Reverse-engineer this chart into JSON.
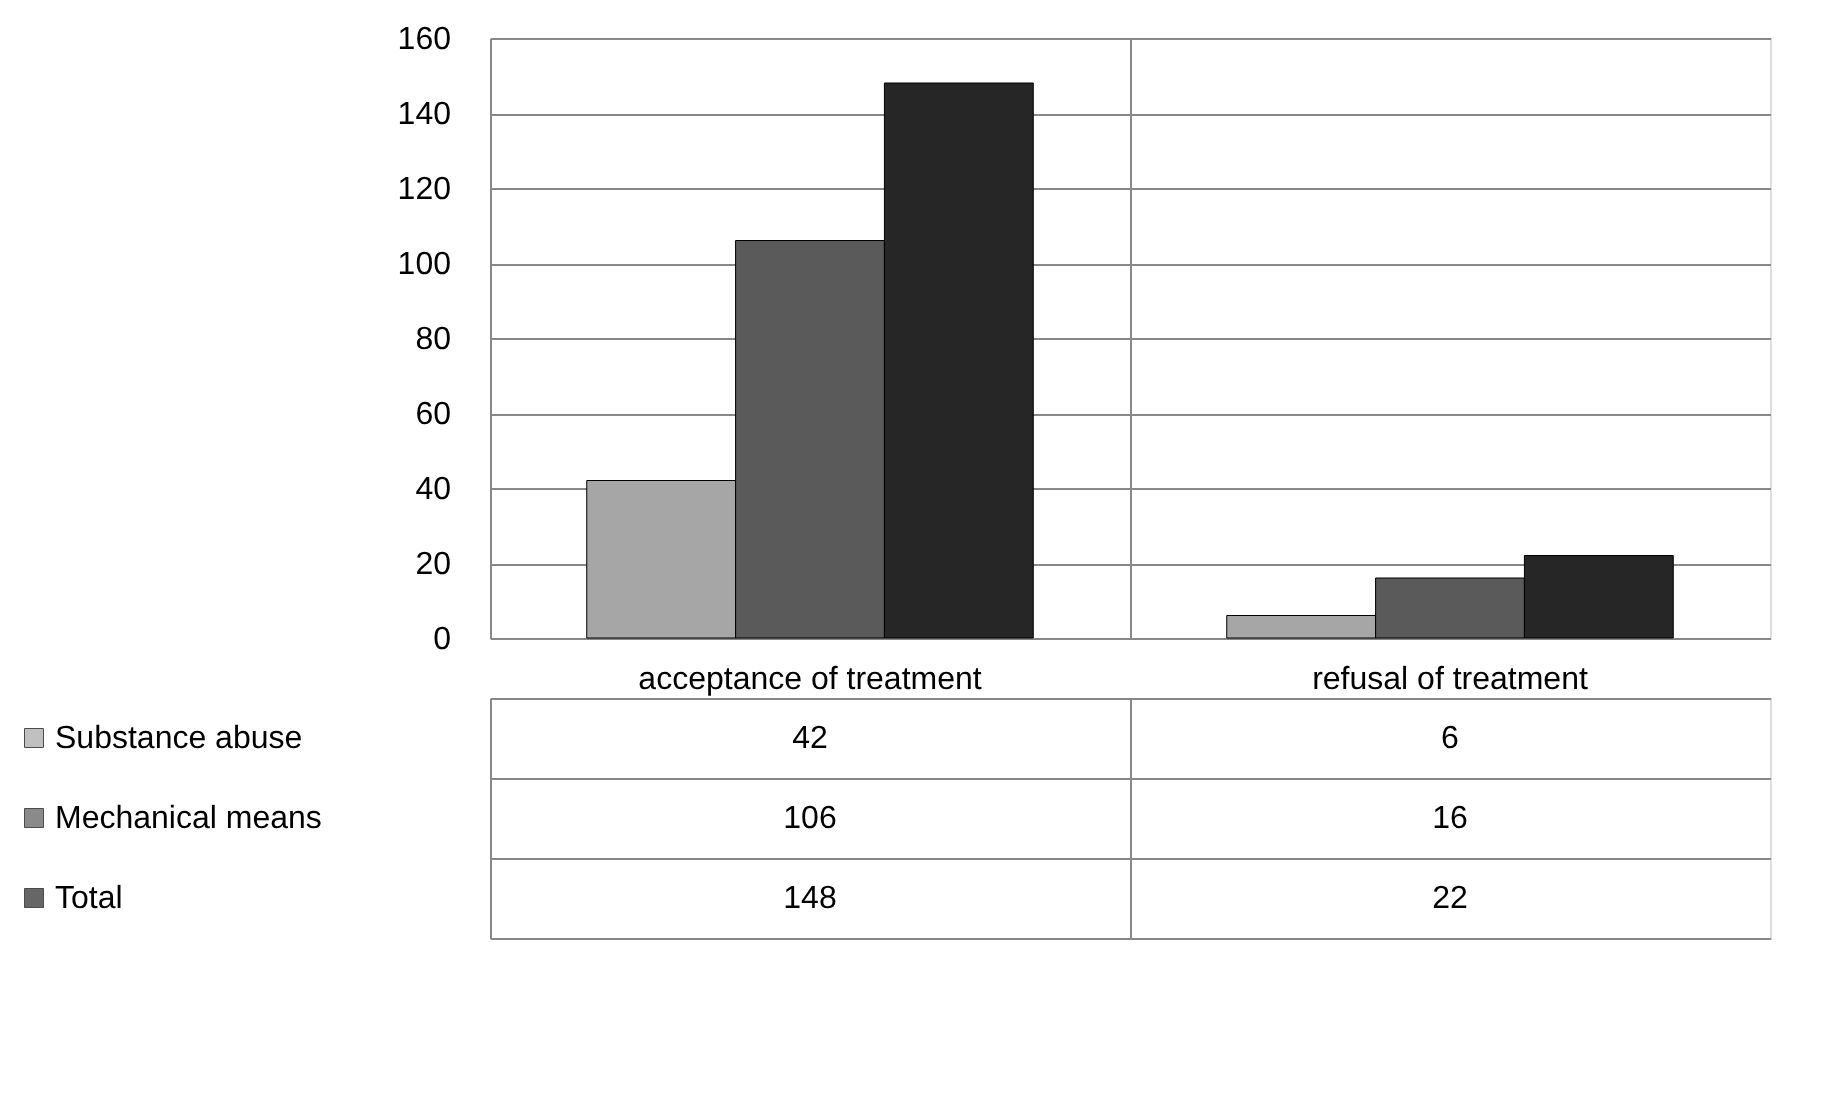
{
  "chart_data": {
    "type": "bar",
    "categories": [
      "acceptance of treatment",
      "refusal of treatment"
    ],
    "series": [
      {
        "name": "Substance abuse",
        "color": "#a6a6a6",
        "values": [
          42,
          6
        ]
      },
      {
        "name": "Mechanical means",
        "color": "#5a5a5a",
        "values": [
          106,
          16
        ]
      },
      {
        "name": "Total",
        "color": "#262626",
        "values": [
          148,
          22
        ]
      }
    ],
    "ylim": [
      0,
      160
    ],
    "yticks": [
      0,
      20,
      40,
      60,
      80,
      100,
      120,
      140,
      160
    ],
    "grid": "y",
    "legend": "bottom",
    "data_labels": true
  }
}
